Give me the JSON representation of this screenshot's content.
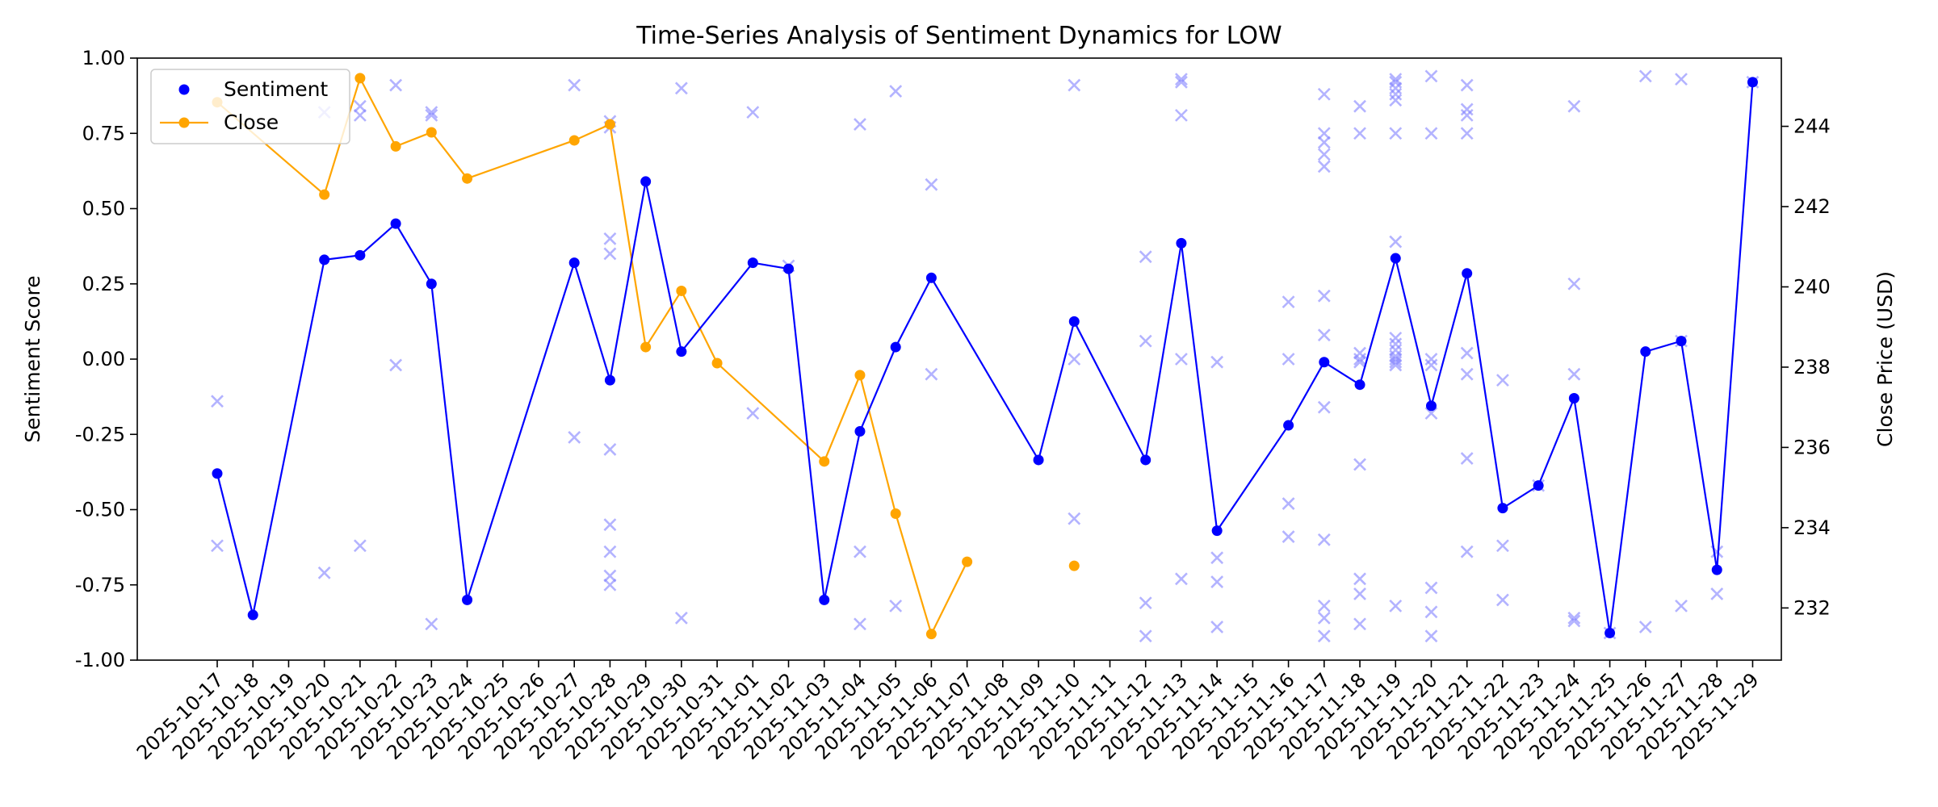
{
  "chart_data": {
    "type": "line",
    "title": "Time-Series Analysis of Sentiment Dynamics for LOW",
    "ylabel_left": "Sentiment Score",
    "ylabel_right": "Close Price (USD)",
    "xlabel": "",
    "ylim_left": [
      -1.0,
      1.0
    ],
    "ylim_right": [
      230.7,
      245.7
    ],
    "yticks_left": [
      "-1.00",
      "-0.75",
      "-0.50",
      "-0.25",
      "0.00",
      "0.25",
      "0.50",
      "0.75",
      "1.00"
    ],
    "yticks_right": [
      "232",
      "234",
      "236",
      "238",
      "240",
      "242",
      "244"
    ],
    "grid": false,
    "legend": {
      "position": "top-left",
      "entries": [
        "Sentiment",
        "Close"
      ]
    },
    "colors": {
      "sentiment": "#0000ff",
      "close": "#ffa500",
      "raw": "#8080ff"
    },
    "x": [
      "2025-10-17",
      "2025-10-18",
      "2025-10-19",
      "2025-10-20",
      "2025-10-21",
      "2025-10-22",
      "2025-10-23",
      "2025-10-24",
      "2025-10-25",
      "2025-10-26",
      "2025-10-27",
      "2025-10-28",
      "2025-10-29",
      "2025-10-30",
      "2025-10-31",
      "2025-11-01",
      "2025-11-02",
      "2025-11-03",
      "2025-11-04",
      "2025-11-05",
      "2025-11-06",
      "2025-11-07",
      "2025-11-08",
      "2025-11-09",
      "2025-11-10",
      "2025-11-11",
      "2025-11-12",
      "2025-11-13",
      "2025-11-14",
      "2025-11-15",
      "2025-11-16",
      "2025-11-17",
      "2025-11-18",
      "2025-11-19",
      "2025-11-20",
      "2025-11-21",
      "2025-11-22",
      "2025-11-23",
      "2025-11-24",
      "2025-11-25",
      "2025-11-26",
      "2025-11-27",
      "2025-11-28",
      "2025-11-29"
    ],
    "series": [
      {
        "name": "Sentiment",
        "type": "line",
        "points": [
          [
            "2025-10-17",
            -0.38
          ],
          [
            "2025-10-18",
            -0.85
          ],
          [
            "2025-10-20",
            0.33
          ],
          [
            "2025-10-21",
            0.345
          ],
          [
            "2025-10-22",
            0.45
          ],
          [
            "2025-10-23",
            0.25
          ],
          [
            "2025-10-24",
            -0.8
          ],
          [
            "2025-10-27",
            0.32
          ],
          [
            "2025-10-28",
            -0.07
          ],
          [
            "2025-10-29",
            0.59
          ],
          [
            "2025-10-30",
            0.025
          ],
          [
            "2025-11-01",
            0.32
          ],
          [
            "2025-11-02",
            0.3
          ],
          [
            "2025-11-03",
            -0.8
          ],
          [
            "2025-11-04",
            -0.24
          ],
          [
            "2025-11-05",
            0.04
          ],
          [
            "2025-11-06",
            0.27
          ],
          [
            "2025-11-09",
            -0.335
          ],
          [
            "2025-11-10",
            0.125
          ],
          [
            "2025-11-12",
            -0.335
          ],
          [
            "2025-11-13",
            0.385
          ],
          [
            "2025-11-14",
            -0.57
          ],
          [
            "2025-11-16",
            -0.22
          ],
          [
            "2025-11-17",
            -0.01
          ],
          [
            "2025-11-18",
            -0.085
          ],
          [
            "2025-11-19",
            0.335
          ],
          [
            "2025-11-20",
            -0.155
          ],
          [
            "2025-11-21",
            0.285
          ],
          [
            "2025-11-22",
            -0.495
          ],
          [
            "2025-11-23",
            -0.42
          ],
          [
            "2025-11-24",
            -0.13
          ],
          [
            "2025-11-25",
            -0.91
          ],
          [
            "2025-11-26",
            0.025
          ],
          [
            "2025-11-27",
            0.06
          ],
          [
            "2025-11-28",
            -0.7
          ],
          [
            "2025-11-29",
            0.92
          ]
        ]
      },
      {
        "name": "Close",
        "type": "line",
        "segments": [
          [
            [
              "2025-10-17",
              244.6
            ],
            [
              "2025-10-20",
              242.3
            ],
            [
              "2025-10-21",
              245.2
            ],
            [
              "2025-10-22",
              243.5
            ],
            [
              "2025-10-23",
              243.85
            ],
            [
              "2025-10-24",
              242.7
            ],
            [
              "2025-10-27",
              243.65
            ],
            [
              "2025-10-28",
              244.05
            ],
            [
              "2025-10-29",
              238.5
            ],
            [
              "2025-10-30",
              239.9
            ],
            [
              "2025-10-31",
              238.1
            ],
            [
              "2025-11-03",
              235.65
            ],
            [
              "2025-11-04",
              237.8
            ],
            [
              "2025-11-05",
              234.35
            ],
            [
              "2025-11-06",
              231.35
            ],
            [
              "2025-11-07",
              233.15
            ]
          ],
          [
            [
              "2025-11-10",
              233.05
            ]
          ]
        ]
      },
      {
        "name": "",
        "type": "scatter",
        "marker": "x",
        "points": [
          [
            "2025-10-17",
            -0.14
          ],
          [
            "2025-10-17",
            -0.62
          ],
          [
            "2025-10-20",
            0.82
          ],
          [
            "2025-10-20",
            -0.71
          ],
          [
            "2025-10-21",
            0.84
          ],
          [
            "2025-10-21",
            0.81
          ],
          [
            "2025-10-21",
            -0.62
          ],
          [
            "2025-10-22",
            0.91
          ],
          [
            "2025-10-22",
            -0.02
          ],
          [
            "2025-10-23",
            0.82
          ],
          [
            "2025-10-23",
            0.81
          ],
          [
            "2025-10-23",
            -0.88
          ],
          [
            "2025-10-27",
            0.91
          ],
          [
            "2025-10-27",
            -0.26
          ],
          [
            "2025-10-28",
            0.79
          ],
          [
            "2025-10-28",
            0.77
          ],
          [
            "2025-10-28",
            0.4
          ],
          [
            "2025-10-28",
            0.35
          ],
          [
            "2025-10-28",
            -0.3
          ],
          [
            "2025-10-28",
            -0.55
          ],
          [
            "2025-10-28",
            -0.64
          ],
          [
            "2025-10-28",
            -0.72
          ],
          [
            "2025-10-28",
            -0.75
          ],
          [
            "2025-10-30",
            0.9
          ],
          [
            "2025-10-30",
            -0.86
          ],
          [
            "2025-11-01",
            0.82
          ],
          [
            "2025-11-01",
            -0.18
          ],
          [
            "2025-11-02",
            0.31
          ],
          [
            "2025-11-04",
            0.78
          ],
          [
            "2025-11-04",
            -0.64
          ],
          [
            "2025-11-04",
            -0.88
          ],
          [
            "2025-11-05",
            0.89
          ],
          [
            "2025-11-05",
            -0.82
          ],
          [
            "2025-11-06",
            0.58
          ],
          [
            "2025-11-06",
            -0.05
          ],
          [
            "2025-11-10",
            0.91
          ],
          [
            "2025-11-10",
            0.0
          ],
          [
            "2025-11-10",
            -0.53
          ],
          [
            "2025-11-12",
            0.34
          ],
          [
            "2025-11-12",
            0.06
          ],
          [
            "2025-11-12",
            -0.81
          ],
          [
            "2025-11-12",
            -0.92
          ],
          [
            "2025-11-13",
            0.93
          ],
          [
            "2025-11-13",
            0.92
          ],
          [
            "2025-11-13",
            0.81
          ],
          [
            "2025-11-13",
            0.0
          ],
          [
            "2025-11-13",
            -0.73
          ],
          [
            "2025-11-14",
            -0.01
          ],
          [
            "2025-11-14",
            -0.66
          ],
          [
            "2025-11-14",
            -0.74
          ],
          [
            "2025-11-14",
            -0.89
          ],
          [
            "2025-11-16",
            0.19
          ],
          [
            "2025-11-16",
            0.0
          ],
          [
            "2025-11-16",
            -0.48
          ],
          [
            "2025-11-16",
            -0.59
          ],
          [
            "2025-11-17",
            0.88
          ],
          [
            "2025-11-17",
            0.75
          ],
          [
            "2025-11-17",
            0.72
          ],
          [
            "2025-11-17",
            0.68
          ],
          [
            "2025-11-17",
            0.64
          ],
          [
            "2025-11-17",
            0.21
          ],
          [
            "2025-11-17",
            0.08
          ],
          [
            "2025-11-17",
            -0.16
          ],
          [
            "2025-11-17",
            -0.6
          ],
          [
            "2025-11-17",
            -0.82
          ],
          [
            "2025-11-17",
            -0.86
          ],
          [
            "2025-11-17",
            -0.92
          ],
          [
            "2025-11-18",
            0.84
          ],
          [
            "2025-11-18",
            0.75
          ],
          [
            "2025-11-18",
            0.02
          ],
          [
            "2025-11-18",
            0.0
          ],
          [
            "2025-11-18",
            -0.01
          ],
          [
            "2025-11-18",
            -0.35
          ],
          [
            "2025-11-18",
            -0.73
          ],
          [
            "2025-11-18",
            -0.78
          ],
          [
            "2025-11-18",
            -0.88
          ],
          [
            "2025-11-19",
            0.93
          ],
          [
            "2025-11-19",
            0.92
          ],
          [
            "2025-11-19",
            0.9
          ],
          [
            "2025-11-19",
            0.88
          ],
          [
            "2025-11-19",
            0.86
          ],
          [
            "2025-11-19",
            0.75
          ],
          [
            "2025-11-19",
            0.39
          ],
          [
            "2025-11-19",
            0.07
          ],
          [
            "2025-11-19",
            0.05
          ],
          [
            "2025-11-19",
            0.03
          ],
          [
            "2025-11-19",
            0.01
          ],
          [
            "2025-11-19",
            0.0
          ],
          [
            "2025-11-19",
            -0.01
          ],
          [
            "2025-11-19",
            -0.02
          ],
          [
            "2025-11-19",
            -0.82
          ],
          [
            "2025-11-20",
            0.94
          ],
          [
            "2025-11-20",
            0.75
          ],
          [
            "2025-11-20",
            0.0
          ],
          [
            "2025-11-20",
            -0.02
          ],
          [
            "2025-11-20",
            -0.18
          ],
          [
            "2025-11-20",
            -0.76
          ],
          [
            "2025-11-20",
            -0.84
          ],
          [
            "2025-11-20",
            -0.92
          ],
          [
            "2025-11-21",
            0.91
          ],
          [
            "2025-11-21",
            0.83
          ],
          [
            "2025-11-21",
            0.81
          ],
          [
            "2025-11-21",
            0.75
          ],
          [
            "2025-11-21",
            0.02
          ],
          [
            "2025-11-21",
            -0.05
          ],
          [
            "2025-11-21",
            -0.33
          ],
          [
            "2025-11-21",
            -0.64
          ],
          [
            "2025-11-22",
            -0.07
          ],
          [
            "2025-11-22",
            -0.62
          ],
          [
            "2025-11-22",
            -0.8
          ],
          [
            "2025-11-23",
            -0.42
          ],
          [
            "2025-11-24",
            0.84
          ],
          [
            "2025-11-24",
            0.25
          ],
          [
            "2025-11-24",
            -0.05
          ],
          [
            "2025-11-24",
            -0.86
          ],
          [
            "2025-11-24",
            -0.87
          ],
          [
            "2025-11-25",
            -0.91
          ],
          [
            "2025-11-26",
            0.94
          ],
          [
            "2025-11-26",
            -0.89
          ],
          [
            "2025-11-27",
            0.93
          ],
          [
            "2025-11-27",
            0.06
          ],
          [
            "2025-11-27",
            -0.82
          ],
          [
            "2025-11-28",
            -0.64
          ],
          [
            "2025-11-28",
            -0.78
          ],
          [
            "2025-11-29",
            0.92
          ]
        ]
      }
    ]
  }
}
